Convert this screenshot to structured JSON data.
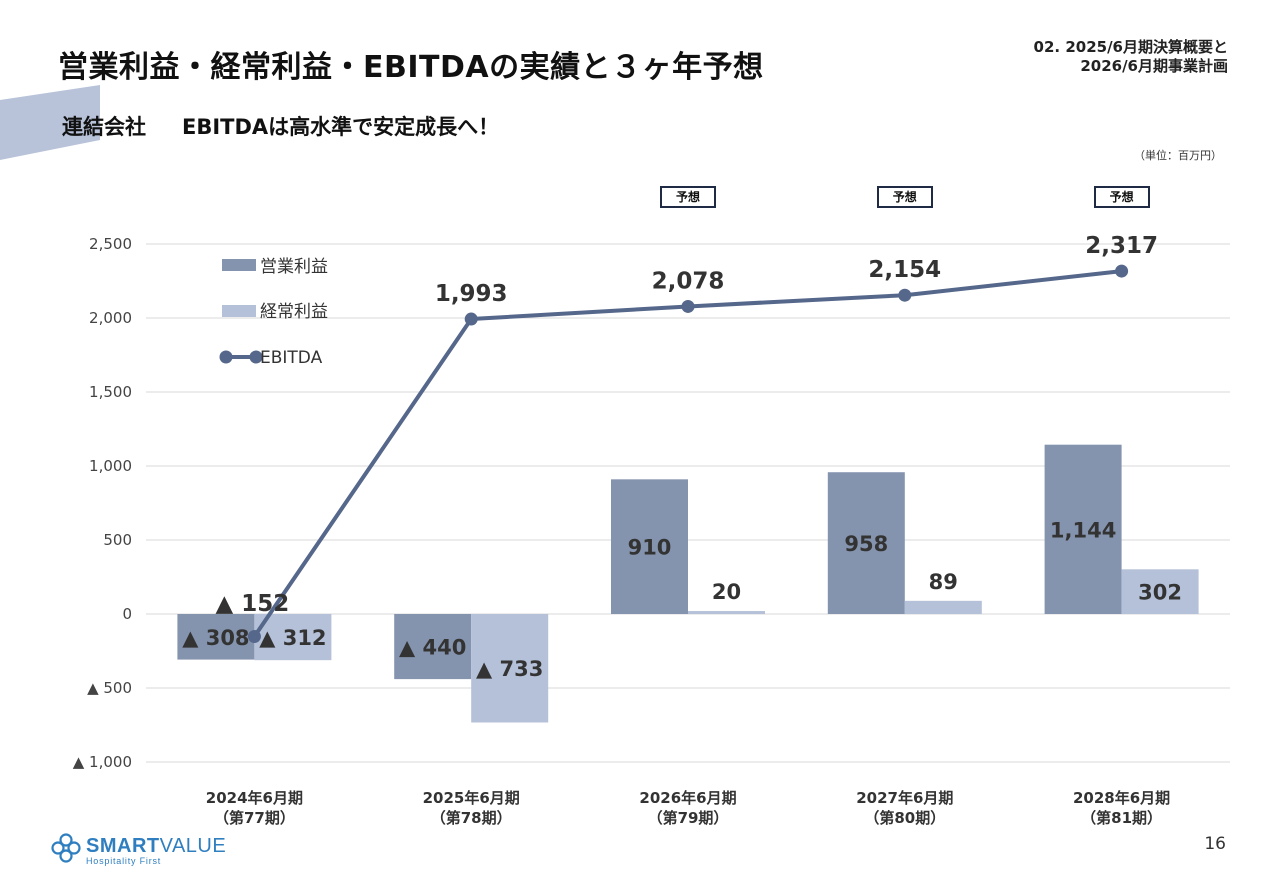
{
  "header": {
    "title": "営業利益・経常利益・EBITDAの実績と３ヶ年予想",
    "section_line1": "02. 2025/6月期決算概要と",
    "section_line2": "2026/6月期事業計画",
    "subtitle_prefix": "連結会社",
    "subtitle_main": "EBITDAは高水準で安定成長へ！",
    "unit": "（単位：百万円）"
  },
  "forecast_tag": "予想",
  "colors": {
    "operating": "#8594ae",
    "ordinary": "#b5c1d9",
    "ebitda": "#55678a",
    "accent": "#b8c3d9",
    "tag_border": "#1f2a44",
    "logo": "#2f7fc0"
  },
  "chart_data": {
    "type": "bar",
    "categories": [
      "2024年6月期",
      "2025年6月期",
      "2026年6月期",
      "2027年6月期",
      "2028年6月期"
    ],
    "category_sub": [
      "（第77期）",
      "（第78期）",
      "（第79期）",
      "（第80期）",
      "（第81期）"
    ],
    "forecast": [
      false,
      false,
      true,
      true,
      true
    ],
    "series": [
      {
        "name": "営業利益",
        "type": "bar",
        "values": [
          -308,
          -440,
          910,
          958,
          1144
        ],
        "labels": [
          "▲ 308",
          "▲ 440",
          "910",
          "958",
          "1,144"
        ]
      },
      {
        "name": "経常利益",
        "type": "bar",
        "values": [
          -312,
          -733,
          20,
          89,
          302
        ],
        "labels": [
          "▲ 312",
          "▲ 733",
          "20",
          "89",
          "302"
        ]
      },
      {
        "name": "EBITDA",
        "type": "line",
        "values": [
          -152,
          1993,
          2078,
          2154,
          2317
        ],
        "labels": [
          "▲ 152",
          "1,993",
          "2,078",
          "2,154",
          "2,317"
        ]
      }
    ],
    "ylim": [
      -1000,
      2500
    ],
    "yticks": [
      -1000,
      -500,
      0,
      500,
      1000,
      1500,
      2000,
      2500
    ],
    "ytick_labels": [
      "▲ 1,000",
      "▲ 500",
      "0",
      "500",
      "1,000",
      "1,500",
      "2,000",
      "2,500"
    ],
    "grid": true,
    "legend_position": "top-left"
  },
  "footer": {
    "logo_text_bold": "SMART",
    "logo_text": "VALUE",
    "logo_sub": "Hospitality First",
    "page_number": "16"
  }
}
